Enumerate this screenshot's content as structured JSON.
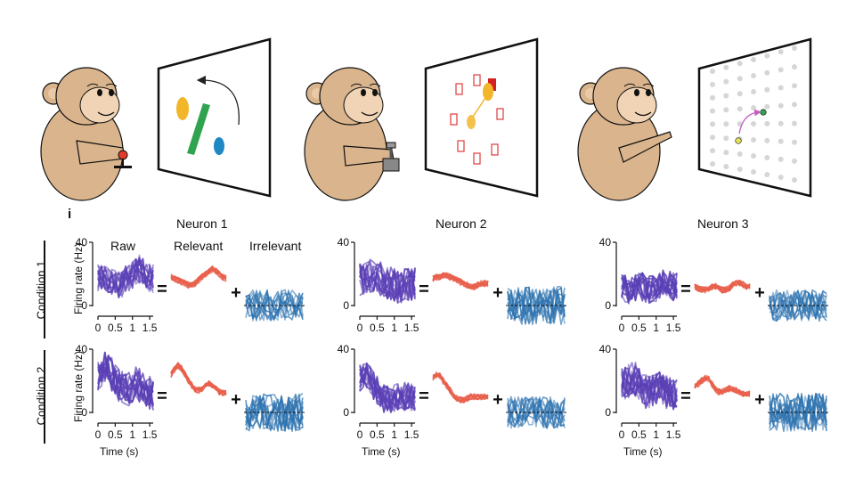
{
  "panel_label": "i",
  "neurons": [
    "Neuron 1",
    "Neuron 2",
    "Neuron 3"
  ],
  "columns": {
    "raw": "Raw",
    "relevant": "Relevant",
    "irrelevant": "Irrelevant"
  },
  "conditions": [
    "Condition 1",
    "Condition 2"
  ],
  "y_axis": {
    "label": "Firing rate (Hz)",
    "ticks": [
      "40",
      "0"
    ]
  },
  "x_axis": {
    "label": "Time (s)",
    "ticks": [
      "0",
      "0.5",
      "1",
      "1.5"
    ]
  },
  "operators": {
    "equals": "=",
    "plus": "+"
  },
  "colors": {
    "raw": "#5a3fb5",
    "relevant": "#e8604c",
    "irrelevant": "#2f74b0",
    "monkey": "#d9b48c",
    "screen_border": "#111111",
    "dot_grid": "#d6d6d6",
    "target_outline": "#e03a3a"
  },
  "icons": [
    "monkey-joystick-icon",
    "monkey-lever-icon",
    "monkey-pointing-icon"
  ],
  "chart_data": {
    "type": "line",
    "description_units": "firing rate in Hz over time in s",
    "xlim": [
      0,
      1.6
    ],
    "ylim": [
      0,
      40
    ],
    "x": [
      0,
      0.1,
      0.2,
      0.3,
      0.4,
      0.5,
      0.6,
      0.7,
      0.8,
      0.9,
      1.0,
      1.1,
      1.2,
      1.3,
      1.4,
      1.5,
      1.6
    ],
    "panels": [
      {
        "neuron": "Neuron 1",
        "condition": "Condition 1",
        "relevant": [
          18,
          17,
          16,
          15,
          14,
          13,
          13,
          14,
          16,
          18,
          20,
          22,
          23,
          22,
          20,
          18,
          17
        ],
        "irrelevant_range": [
          -10,
          10
        ]
      },
      {
        "neuron": "Neuron 2",
        "condition": "Condition 1",
        "relevant": [
          17,
          18,
          18,
          19,
          19,
          18,
          17,
          16,
          15,
          14,
          13,
          12,
          12,
          13,
          14,
          14,
          14
        ],
        "irrelevant_range": [
          -12,
          12
        ]
      },
      {
        "neuron": "Neuron 3",
        "condition": "Condition 1",
        "relevant": [
          12,
          11,
          10,
          10,
          11,
          12,
          12,
          11,
          10,
          10,
          11,
          13,
          14,
          14,
          13,
          12,
          12
        ],
        "irrelevant_range": [
          -10,
          10
        ]
      },
      {
        "neuron": "Neuron 1",
        "condition": "Condition 2",
        "relevant": [
          24,
          27,
          30,
          28,
          24,
          20,
          17,
          15,
          14,
          15,
          17,
          18,
          17,
          15,
          13,
          12,
          12
        ],
        "irrelevant_range": [
          -12,
          12
        ]
      },
      {
        "neuron": "Neuron 2",
        "condition": "Condition 2",
        "relevant": [
          22,
          24,
          23,
          20,
          17,
          14,
          11,
          9,
          8,
          8,
          9,
          10,
          10,
          10,
          10,
          10,
          10
        ],
        "irrelevant_range": [
          -10,
          10
        ]
      },
      {
        "neuron": "Neuron 3",
        "condition": "Condition 2",
        "relevant": [
          17,
          18,
          20,
          22,
          21,
          18,
          15,
          13,
          13,
          14,
          15,
          15,
          14,
          13,
          12,
          12,
          12
        ],
        "irrelevant_range": [
          -12,
          12
        ]
      }
    ]
  }
}
